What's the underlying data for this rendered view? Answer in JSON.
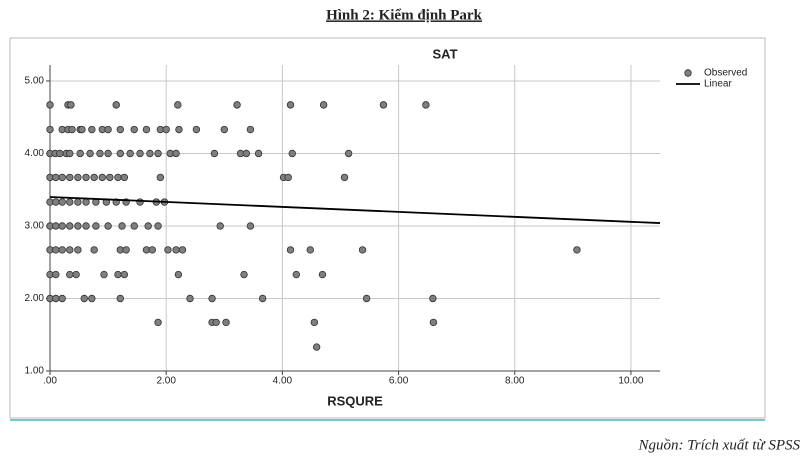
{
  "caption": "Hình 2: Kiểm định Park",
  "source": "Nguồn: Trích xuất từ SPSS",
  "chart_data": {
    "type": "scatter",
    "title": "SAT",
    "x_label": "RSQURE",
    "xlim": [
      0,
      10.5
    ],
    "ylim": [
      1,
      5.22
    ],
    "xticks": [
      {
        "value": 0,
        "label": ".00"
      },
      {
        "value": 2,
        "label": "2.00"
      },
      {
        "value": 4,
        "label": "4.00"
      },
      {
        "value": 6,
        "label": "6.00"
      },
      {
        "value": 8,
        "label": "8.00"
      },
      {
        "value": 10,
        "label": "10.00"
      }
    ],
    "yticks": [
      {
        "value": 1,
        "label": "1.00"
      },
      {
        "value": 2,
        "label": "2.00"
      },
      {
        "value": 3,
        "label": "3.00"
      },
      {
        "value": 4,
        "label": "4.00"
      },
      {
        "value": 5,
        "label": "5.00"
      }
    ],
    "grid": true,
    "legend": "right",
    "series": [
      {
        "name": "Observed",
        "type": "scatter",
        "color": "#7f7f7f",
        "x": [
          0,
          0.31,
          0.36,
          1.14,
          2.2,
          3.22,
          4.14,
          4.71,
          5.74,
          6.47,
          0,
          0.21,
          0.31,
          0.38,
          0.52,
          0.55,
          0.72,
          0.9,
          1.0,
          1.21,
          1.45,
          1.66,
          1.9,
          2.0,
          2.22,
          2.52,
          3.0,
          3.45,
          0,
          0.09,
          0.17,
          0.28,
          0.34,
          0.52,
          0.69,
          0.86,
          1.0,
          1.21,
          1.38,
          1.55,
          1.72,
          1.86,
          2.07,
          2.17,
          2.83,
          3.28,
          3.38,
          3.59,
          4.17,
          5.14,
          0,
          0.1,
          0.21,
          0.34,
          0.48,
          0.62,
          0.76,
          0.9,
          1.03,
          1.17,
          1.28,
          1.9,
          4.02,
          4.1,
          5.07,
          0,
          0.1,
          0.21,
          0.34,
          0.48,
          0.62,
          0.79,
          0.97,
          1.14,
          1.31,
          1.55,
          1.83,
          1.97,
          0,
          0.1,
          0.21,
          0.34,
          0.48,
          0.62,
          0.79,
          1.0,
          1.24,
          1.45,
          1.69,
          1.86,
          2.93,
          3.45,
          0,
          0.1,
          0.21,
          0.34,
          0.48,
          0.76,
          1.21,
          1.31,
          1.66,
          1.76,
          2.03,
          2.17,
          2.28,
          4.14,
          4.48,
          5.38,
          9.07,
          0,
          0.1,
          0.34,
          0.45,
          0.93,
          1.17,
          1.28,
          2.21,
          3.34,
          4.24,
          4.69,
          0,
          0.1,
          0.21,
          0.59,
          0.72,
          1.21,
          2.41,
          2.79,
          3.66,
          5.45,
          6.59,
          1.86,
          2.79,
          2.86,
          3.03,
          4.55,
          6.6,
          4.59
        ],
        "values": [
          4.67,
          4.67,
          4.67,
          4.67,
          4.67,
          4.67,
          4.67,
          4.67,
          4.67,
          4.67,
          4.33,
          4.33,
          4.33,
          4.33,
          4.33,
          4.33,
          4.33,
          4.33,
          4.33,
          4.33,
          4.33,
          4.33,
          4.33,
          4.33,
          4.33,
          4.33,
          4.33,
          4.33,
          4,
          4,
          4,
          4,
          4,
          4,
          4,
          4,
          4,
          4,
          4,
          4,
          4,
          4,
          4,
          4,
          4,
          4,
          4,
          4,
          4,
          4,
          3.67,
          3.67,
          3.67,
          3.67,
          3.67,
          3.67,
          3.67,
          3.67,
          3.67,
          3.67,
          3.67,
          3.67,
          3.67,
          3.67,
          3.67,
          3.33,
          3.33,
          3.33,
          3.33,
          3.33,
          3.33,
          3.33,
          3.33,
          3.33,
          3.33,
          3.33,
          3.33,
          3.33,
          3,
          3,
          3,
          3,
          3,
          3,
          3,
          3,
          3,
          3,
          3,
          3,
          3,
          3,
          2.67,
          2.67,
          2.67,
          2.67,
          2.67,
          2.67,
          2.67,
          2.67,
          2.67,
          2.67,
          2.67,
          2.67,
          2.67,
          2.67,
          2.67,
          2.67,
          2.67,
          2.33,
          2.33,
          2.33,
          2.33,
          2.33,
          2.33,
          2.33,
          2.33,
          2.33,
          2.33,
          2.33,
          2,
          2,
          2,
          2,
          2,
          2,
          2,
          2,
          2,
          2,
          2,
          1.67,
          1.67,
          1.67,
          1.67,
          1.67,
          1.67,
          1.33
        ]
      },
      {
        "name": "Linear",
        "type": "line",
        "color": "#000000",
        "x": [
          0,
          10.5
        ],
        "values": [
          3.4,
          3.04
        ]
      }
    ]
  }
}
